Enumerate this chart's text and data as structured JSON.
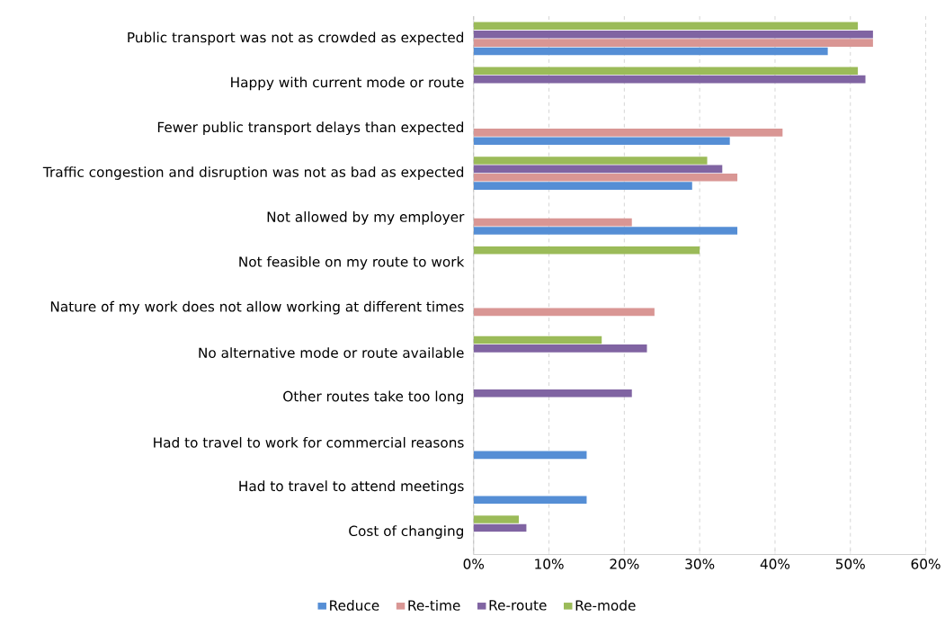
{
  "chart_data": {
    "type": "bar",
    "orientation": "horizontal",
    "categories": [
      "Public transport was not as crowded as expected",
      "Happy with current mode or route",
      "Fewer public transport delays than expected",
      "Traffic congestion and disruption was not as bad as expected",
      "Not allowed by my employer",
      "Not feasible on my route to work",
      "Nature of my work does not allow working at different times",
      "No alternative mode or route available",
      "Other routes take too long",
      "Had to travel to work for commercial reasons",
      "Had to travel to attend meetings",
      "Cost of changing"
    ],
    "series": [
      {
        "name": "Reduce",
        "color": "#558ed5",
        "values": [
          47,
          null,
          34,
          29,
          35,
          null,
          null,
          null,
          null,
          15,
          15,
          null
        ]
      },
      {
        "name": "Re-time",
        "color": "#d99694",
        "values": [
          53,
          null,
          41,
          35,
          21,
          null,
          24,
          null,
          null,
          null,
          null,
          null
        ]
      },
      {
        "name": "Re-route",
        "color": "#8064a2",
        "values": [
          53,
          52,
          null,
          33,
          null,
          null,
          null,
          23,
          21,
          null,
          null,
          7
        ]
      },
      {
        "name": "Re-mode",
        "color": "#9bbb59",
        "values": [
          51,
          51,
          null,
          31,
          null,
          30,
          null,
          17,
          null,
          null,
          null,
          6
        ]
      }
    ],
    "xlim": [
      0,
      60
    ],
    "xticks": [
      {
        "value": 0,
        "label": "0%"
      },
      {
        "value": 10,
        "label": "10%"
      },
      {
        "value": 20,
        "label": "20%"
      },
      {
        "value": 30,
        "label": "30%"
      },
      {
        "value": 40,
        "label": "40%"
      },
      {
        "value": 50,
        "label": "50%"
      },
      {
        "value": 60,
        "label": "60%"
      }
    ],
    "grid": "x",
    "legend": "bottom"
  }
}
